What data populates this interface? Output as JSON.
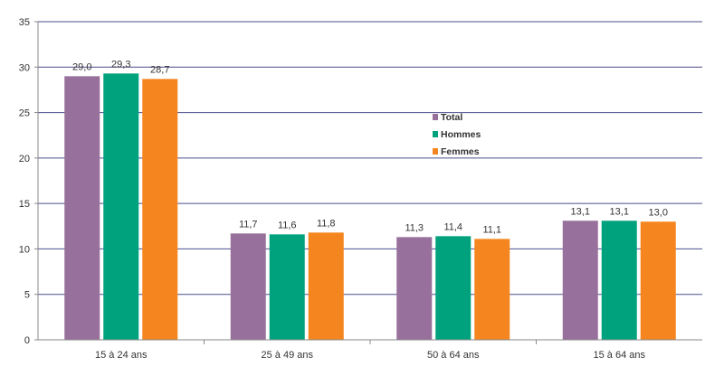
{
  "chart_data": {
    "type": "bar",
    "title": "",
    "xlabel": "",
    "ylabel": "",
    "categories": [
      "15 à 24 ans",
      "25 à 49 ans",
      "50 à 64 ans",
      "15 à 64 ans"
    ],
    "series": [
      {
        "name": "Total",
        "color": "#97709b",
        "values": [
          29.0,
          11.7,
          11.3,
          13.1
        ],
        "labels": [
          "29,0",
          "11,7",
          "11,3",
          "13,1"
        ]
      },
      {
        "name": "Hommes",
        "color": "#00a27e",
        "values": [
          29.3,
          11.6,
          11.4,
          13.1
        ],
        "labels": [
          "29,3",
          "11,6",
          "11,4",
          "13,1"
        ]
      },
      {
        "name": "Femmes",
        "color": "#f5861f",
        "values": [
          28.7,
          11.8,
          11.1,
          13.0
        ],
        "labels": [
          "28,7",
          "11,8",
          "11,1",
          "13,0"
        ]
      }
    ],
    "ylim": [
      0,
      35
    ],
    "yticks": [
      0,
      5,
      10,
      15,
      20,
      25,
      30,
      35
    ],
    "grid": true,
    "gridline_color": "#4e4e8e",
    "legend_position": "center-right"
  }
}
